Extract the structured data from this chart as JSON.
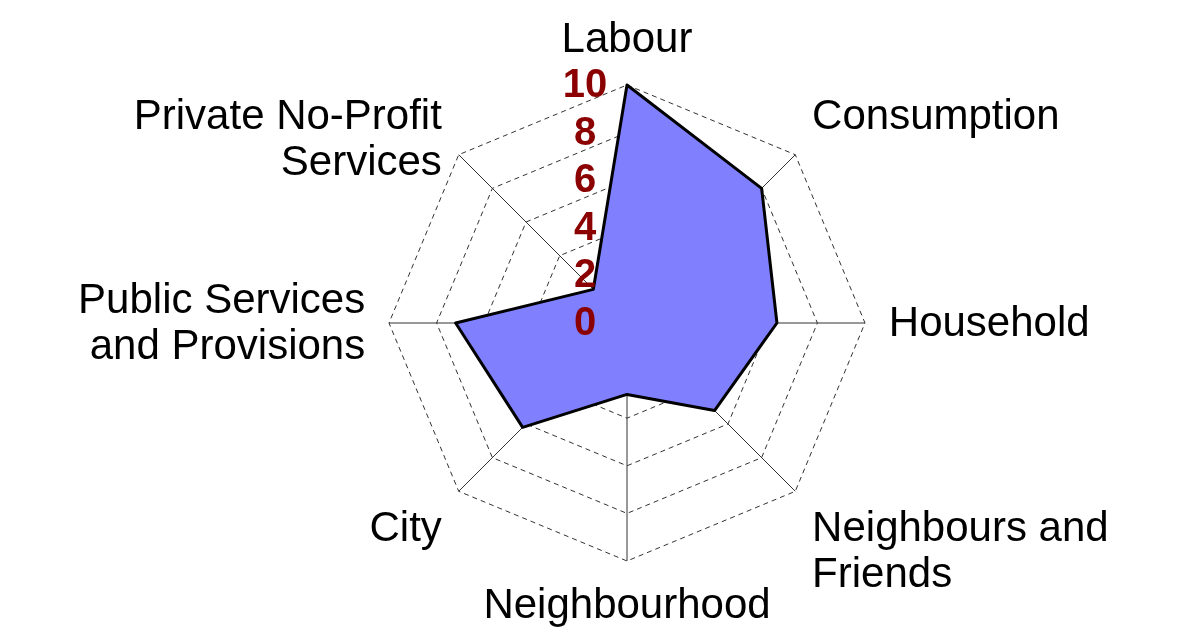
{
  "chart_data": {
    "type": "radar",
    "categories": [
      "Labour",
      "Consumption",
      "Household",
      "Neighbours and\nFriends",
      "Neighbourhood",
      "City",
      "Public Services\nand Provisions",
      "Private No-Profit\nServices"
    ],
    "series": [
      {
        "color": "#8080ff",
        "values": [
          10,
          8,
          6.3,
          5.2,
          3,
          6.2,
          7.2,
          2
        ]
      }
    ],
    "ylim": [
      0,
      10
    ],
    "yticks": [
      0,
      2,
      4,
      6,
      8,
      10
    ],
    "grid": true
  }
}
